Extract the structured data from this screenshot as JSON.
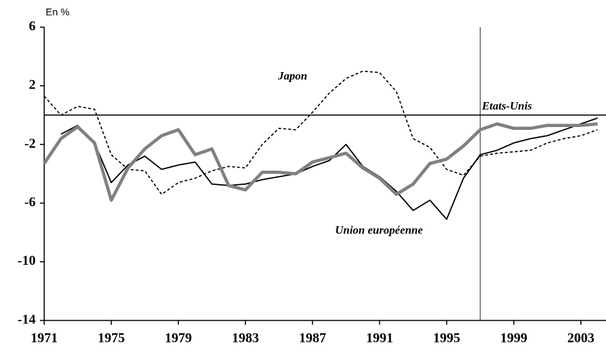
{
  "chart_data": {
    "type": "line",
    "y_unit_label": "En %",
    "x": [
      1971,
      1972,
      1973,
      1974,
      1975,
      1976,
      1977,
      1978,
      1979,
      1980,
      1981,
      1982,
      1983,
      1984,
      1985,
      1986,
      1987,
      1988,
      1989,
      1990,
      1991,
      1992,
      1993,
      1994,
      1995,
      1996,
      1997,
      1998,
      1999,
      2000,
      2001,
      2002,
      2003,
      2004
    ],
    "series": [
      {
        "name": "Japon",
        "color": "#000000",
        "line_width": 1.6,
        "dashed": true,
        "values": [
          1.3,
          0,
          0.6,
          0.4,
          -2.7,
          -3.7,
          -3.8,
          -5.4,
          -4.6,
          -4.3,
          -3.8,
          -3.5,
          -3.6,
          -2,
          -0.9,
          -1,
          0.2,
          1.5,
          2.5,
          3,
          2.9,
          1.6,
          -1.6,
          -2.2,
          -3.7,
          -4.1,
          -2.8,
          -2.6,
          -2.5,
          -2.4,
          -1.9,
          -1.6,
          -1.4,
          -1.0
        ]
      },
      {
        "name": "Union européenne",
        "color": "#000000",
        "line_width": 1.8,
        "dashed": false,
        "values": [
          null,
          -1.3,
          -0.7,
          -1.9,
          -4.6,
          -3.4,
          -2.8,
          -3.7,
          -3.4,
          -3.2,
          -4.7,
          -4.8,
          -4.7,
          -4.4,
          -4.2,
          -4.0,
          -3.5,
          -3.1,
          -2.0,
          -3.5,
          -4.2,
          -5.2,
          -6.5,
          -5.8,
          -7.1,
          -4.3,
          -2.7,
          -2.4,
          -1.9,
          -1.6,
          -1.4,
          -1.0,
          -0.6,
          -0.2
        ]
      },
      {
        "name": "Etats-Unis",
        "color": "#808080",
        "line_width": 4.5,
        "dashed": false,
        "values": [
          -3.3,
          -1.6,
          -0.8,
          -1.9,
          -5.8,
          -3.6,
          -2.3,
          -1.4,
          -1.0,
          -2.7,
          -2.3,
          -4.8,
          -5.1,
          -3.9,
          -3.9,
          -4.0,
          -3.2,
          -2.9,
          -2.6,
          -3.6,
          -4.3,
          -5.4,
          -4.7,
          -3.3,
          -3.0,
          -2.1,
          -1.0,
          -0.6,
          -0.9,
          -0.9,
          -0.7,
          -0.7,
          -0.7,
          -0.6
        ]
      }
    ],
    "xlim": [
      1971,
      2004.5
    ],
    "xticks": [
      1971,
      1975,
      1979,
      1983,
      1987,
      1991,
      1995,
      1999,
      2003
    ],
    "ylim": [
      -14,
      6
    ],
    "yticks": [
      6,
      2,
      -2,
      -6,
      -10,
      -14
    ],
    "hline": 0,
    "vline": 1997
  }
}
